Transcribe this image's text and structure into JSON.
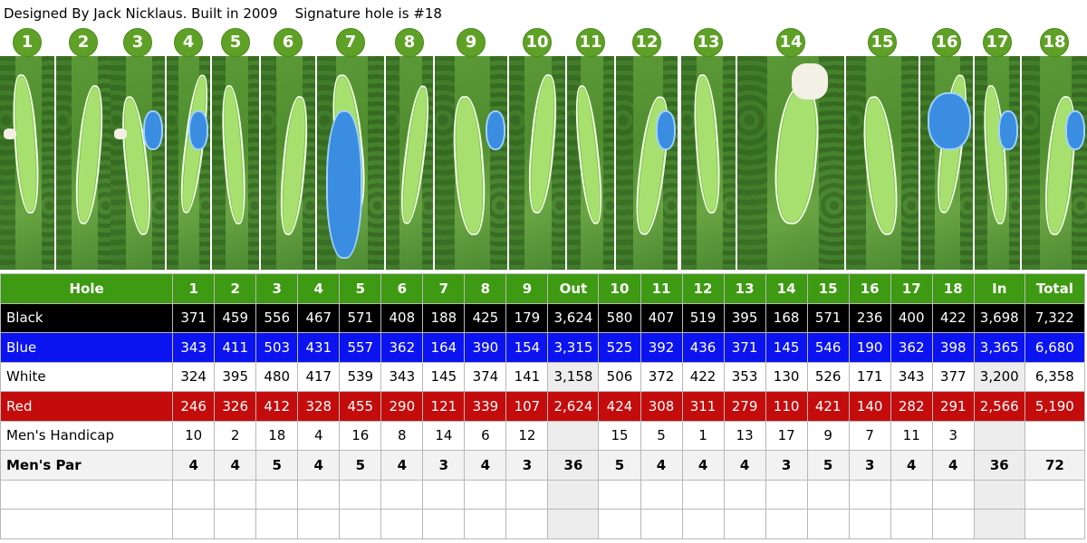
{
  "header": {
    "text": "Designed By Jack Nicklaus. Built in 2009    Signature hole is #18"
  },
  "holes_strip": [
    "1",
    "2",
    "3",
    "4",
    "5",
    "6",
    "7",
    "8",
    "9",
    "10",
    "11",
    "12",
    "13",
    "14",
    "15",
    "16",
    "17",
    "18"
  ],
  "scorecard": {
    "header": [
      "Hole",
      "1",
      "2",
      "3",
      "4",
      "5",
      "6",
      "7",
      "8",
      "9",
      "Out",
      "10",
      "11",
      "12",
      "13",
      "14",
      "15",
      "16",
      "17",
      "18",
      "In",
      "Total"
    ],
    "rows": [
      {
        "key": "black",
        "cells": [
          "Black",
          "371",
          "459",
          "556",
          "467",
          "571",
          "408",
          "188",
          "425",
          "179",
          "3,624",
          "580",
          "407",
          "519",
          "395",
          "168",
          "571",
          "236",
          "400",
          "422",
          "3,698",
          "7,322"
        ]
      },
      {
        "key": "blue",
        "cells": [
          "Blue",
          "343",
          "411",
          "503",
          "431",
          "557",
          "362",
          "164",
          "390",
          "154",
          "3,315",
          "525",
          "392",
          "436",
          "371",
          "145",
          "546",
          "190",
          "362",
          "398",
          "3,365",
          "6,680"
        ]
      },
      {
        "key": "white",
        "cells": [
          "White",
          "324",
          "395",
          "480",
          "417",
          "539",
          "343",
          "145",
          "374",
          "141",
          "3,158",
          "506",
          "372",
          "422",
          "353",
          "130",
          "526",
          "171",
          "343",
          "377",
          "3,200",
          "6,358"
        ]
      },
      {
        "key": "red",
        "cells": [
          "Red",
          "246",
          "326",
          "412",
          "328",
          "455",
          "290",
          "121",
          "339",
          "107",
          "2,624",
          "424",
          "308",
          "311",
          "279",
          "110",
          "421",
          "140",
          "282",
          "291",
          "2,566",
          "5,190"
        ]
      },
      {
        "key": "handicap",
        "cells": [
          "Men's Handicap",
          "10",
          "2",
          "18",
          "4",
          "16",
          "8",
          "14",
          "6",
          "12",
          "",
          "15",
          "5",
          "1",
          "13",
          "17",
          "9",
          "7",
          "11",
          "3",
          "",
          ""
        ]
      },
      {
        "key": "par",
        "cells": [
          "Men's Par",
          "4",
          "4",
          "5",
          "4",
          "5",
          "4",
          "3",
          "4",
          "3",
          "36",
          "5",
          "4",
          "4",
          "4",
          "3",
          "5",
          "3",
          "4",
          "4",
          "36",
          "72"
        ]
      },
      {
        "key": "blank",
        "cells": [
          "",
          "",
          "",
          "",
          "",
          "",
          "",
          "",
          "",
          "",
          "",
          "",
          "",
          "",
          "",
          "",
          "",
          "",
          "",
          "",
          "",
          ""
        ]
      },
      {
        "key": "blank",
        "cells": [
          "",
          "",
          "",
          "",
          "",
          "",
          "",
          "",
          "",
          "",
          "",
          "",
          "",
          "",
          "",
          "",
          "",
          "",
          "",
          "",
          "",
          ""
        ]
      }
    ]
  },
  "colors": {
    "header_green": "#3e9a12",
    "black": "#000000",
    "blue": "#0b14f0",
    "red": "#c40c0c",
    "badge": "#5fa126"
  }
}
